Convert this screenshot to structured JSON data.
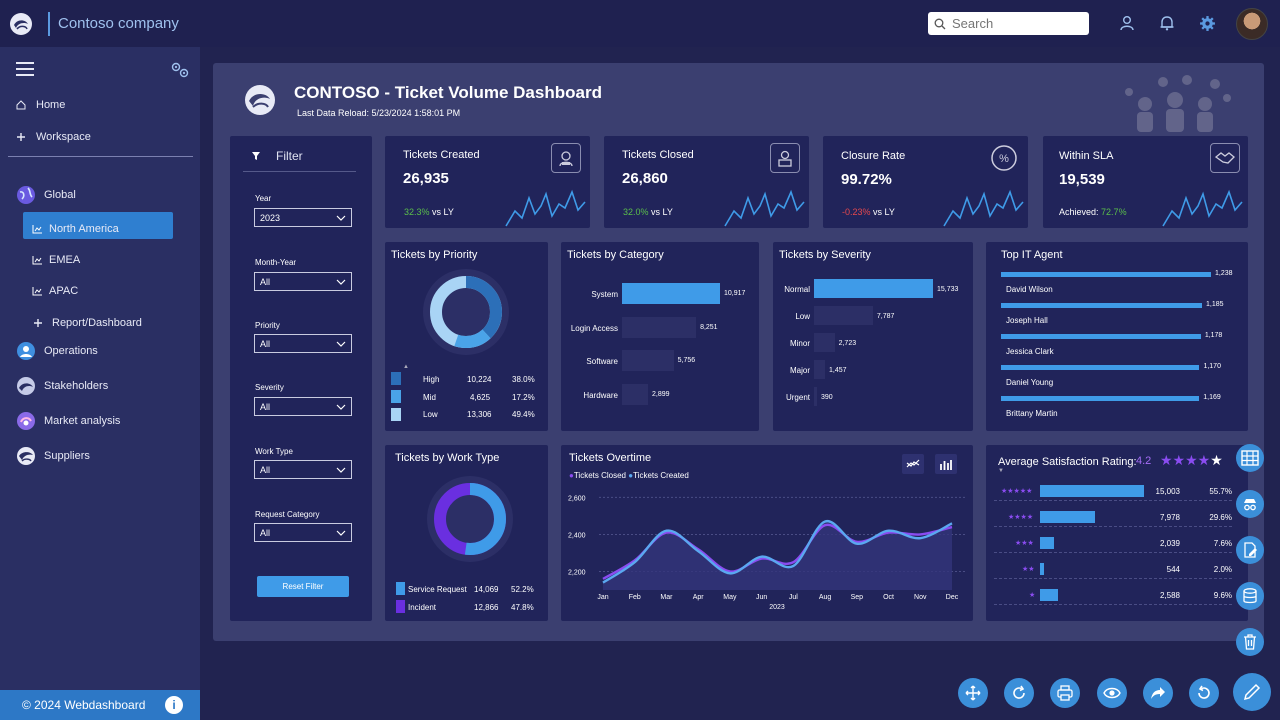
{
  "brand": {
    "name": "Contoso company"
  },
  "search": {
    "placeholder": "Search"
  },
  "sidebar": {
    "items": [
      {
        "label": "Home"
      },
      {
        "label": "Workspace"
      },
      {
        "label": "Global"
      },
      {
        "label": "North America"
      },
      {
        "label": "EMEA"
      },
      {
        "label": "APAC"
      },
      {
        "label": "Report/Dashboard"
      },
      {
        "label": "Operations"
      },
      {
        "label": "Stakeholders"
      },
      {
        "label": "Market analysis"
      },
      {
        "label": "Suppliers"
      }
    ],
    "footer": "© 2024 Webdashboard"
  },
  "dashboard": {
    "title": "CONTOSO - Ticket Volume Dashboard",
    "reload": "Last Data Reload: 5/23/2024 1:58:01 PM"
  },
  "filter": {
    "title": "Filter",
    "fields": [
      {
        "label": "Year",
        "value": "2023"
      },
      {
        "label": "Month-Year",
        "value": "All"
      },
      {
        "label": "Priority",
        "value": "All"
      },
      {
        "label": "Severity",
        "value": "All"
      },
      {
        "label": "Work Type",
        "value": "All"
      },
      {
        "label": "Request Category",
        "value": "All"
      }
    ],
    "reset": "Reset Filter"
  },
  "kpis": [
    {
      "title": "Tickets Created",
      "value": "26,935",
      "delta": "32.3%",
      "suffix": "vs LY",
      "trend": "up"
    },
    {
      "title": "Tickets Closed",
      "value": "26,860",
      "delta": "32.0%",
      "suffix": "vs LY",
      "trend": "up"
    },
    {
      "title": "Closure Rate",
      "value": "99.72%",
      "delta": "-0.23%",
      "suffix": "vs LY",
      "trend": "down"
    },
    {
      "title": "Within SLA",
      "value": "19,539",
      "prefix": "Achieved:",
      "delta": "72.7%",
      "trend": "up"
    }
  ],
  "priority": {
    "title": "Tickets by Priority",
    "rows": [
      {
        "label": "High",
        "count": "10,224",
        "pct": "38.0%",
        "color": "#2c6fb8"
      },
      {
        "label": "Mid",
        "count": "4,625",
        "pct": "17.2%",
        "color": "#4aa3e8"
      },
      {
        "label": "Low",
        "count": "13,306",
        "pct": "49.4%",
        "color": "#a9d4f5"
      }
    ]
  },
  "category": {
    "title": "Tickets by Category",
    "rows": [
      {
        "label": "System",
        "value": 10917,
        "text": "10,917"
      },
      {
        "label": "Login Access",
        "value": 8251,
        "text": "8,251"
      },
      {
        "label": "Software",
        "value": 5756,
        "text": "5,756"
      },
      {
        "label": "Hardware",
        "value": 2899,
        "text": "2,899"
      }
    ]
  },
  "severity": {
    "title": "Tickets by Severity",
    "rows": [
      {
        "label": "Normal",
        "value": 15733,
        "text": "15,733"
      },
      {
        "label": "Low",
        "value": 7787,
        "text": "7,787"
      },
      {
        "label": "Minor",
        "value": 2723,
        "text": "2,723"
      },
      {
        "label": "Major",
        "value": 1457,
        "text": "1,457"
      },
      {
        "label": "Urgent",
        "value": 390,
        "text": "390"
      }
    ]
  },
  "agents": {
    "title": "Top IT Agent",
    "rows": [
      {
        "name": "David Wilson",
        "value": 1238,
        "text": "1,238"
      },
      {
        "name": "Joseph Hall",
        "value": 1185,
        "text": "1,185"
      },
      {
        "name": "Jessica Clark",
        "value": 1178,
        "text": "1,178"
      },
      {
        "name": "Daniel Young",
        "value": 1170,
        "text": "1,170"
      },
      {
        "name": "Brittany Martin",
        "value": 1169,
        "text": "1,169"
      }
    ]
  },
  "worktype": {
    "title": "Tickets by Work Type",
    "rows": [
      {
        "label": "Service Request",
        "count": "14,069",
        "pct": "52.2%",
        "color": "#3f9be8"
      },
      {
        "label": "Incident",
        "count": "12,866",
        "pct": "47.8%",
        "color": "#6a2fe0"
      }
    ]
  },
  "overtime": {
    "title": "Tickets Overtime",
    "legend_closed": "Tickets Closed",
    "legend_created": "Tickets Created",
    "axis_year": "2023"
  },
  "satisfaction": {
    "title": "Average Satisfaction Rating:",
    "rating": "4.2",
    "rows": [
      {
        "stars": "★★★★★",
        "value": 15003,
        "text": "15,003",
        "pct": "55.7%"
      },
      {
        "stars": "★★★★",
        "value": 7978,
        "text": "7,978",
        "pct": "29.6%"
      },
      {
        "stars": "★★★",
        "value": 2039,
        "text": "2,039",
        "pct": "7.6%"
      },
      {
        "stars": "★★",
        "value": 544,
        "text": "544",
        "pct": "2.0%"
      },
      {
        "stars": "★",
        "value": 2588,
        "text": "2,588",
        "pct": "9.6%"
      }
    ]
  },
  "chart_data": [
    {
      "type": "line",
      "title": "Tickets Overtime",
      "x": [
        "Jan",
        "Feb",
        "Mar",
        "Apr",
        "May",
        "Jun",
        "Jul",
        "Aug",
        "Sep",
        "Oct",
        "Nov",
        "Dec"
      ],
      "series": [
        {
          "name": "Tickets Closed",
          "values": [
            2160,
            2260,
            2410,
            2320,
            2200,
            2270,
            2250,
            2450,
            2360,
            2410,
            2400,
            2440
          ],
          "color": "#8a4cf0"
        },
        {
          "name": "Tickets Created",
          "values": [
            2140,
            2250,
            2420,
            2310,
            2190,
            2280,
            2230,
            2470,
            2350,
            2420,
            2380,
            2460
          ],
          "color": "#5aa8f0"
        }
      ],
      "yticks": [
        "2,200",
        "2,400",
        "2,600"
      ],
      "ylim": [
        2100,
        2640
      ],
      "xlabel": "2023"
    }
  ],
  "colors": {
    "accent": "#3f9be8",
    "purple": "#8a4cf0",
    "card": "#21245a",
    "canvas": "#3b3f70"
  }
}
